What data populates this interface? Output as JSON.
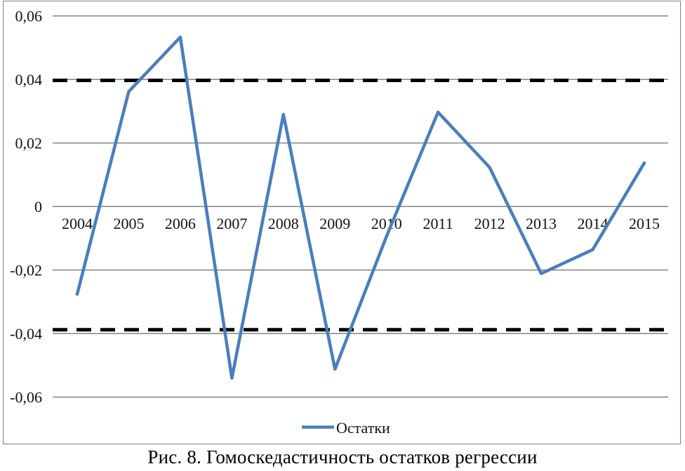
{
  "chart_data": {
    "type": "line",
    "title": "",
    "x": [
      2004,
      2005,
      2006,
      2007,
      2008,
      2009,
      2010,
      2011,
      2012,
      2013,
      2014,
      2015
    ],
    "series": [
      {
        "name": "Остатки",
        "color": "#4a7ebc",
        "values": [
          -0.0276,
          0.0362,
          0.0533,
          -0.054,
          0.029,
          -0.0512,
          -0.0094,
          0.0297,
          0.0123,
          -0.0211,
          -0.0136,
          0.0137
        ]
      }
    ],
    "reference_lines": [
      {
        "value": 0.0397,
        "style": "dashed",
        "color": "#000000"
      },
      {
        "value": -0.0388,
        "style": "dashed",
        "color": "#000000"
      }
    ],
    "ylim": [
      -0.06,
      0.06
    ],
    "ytick_step": 0.02,
    "yticks": [
      0.06,
      0.04,
      0.02,
      0,
      -0.02,
      -0.04,
      -0.06
    ],
    "ytick_labels": [
      "0,06",
      "0,04",
      "0,02",
      "0",
      "-0,02",
      "-0,04",
      "-0,06"
    ],
    "xlabel": "",
    "ylabel": "",
    "grid": "horizontal",
    "legend_position": "bottom-center"
  },
  "caption": "Рис. 8. Гомоскедастичность остатков регрессии",
  "colors": {
    "line": "#4a7ebc",
    "gridline": "#8c8c8c",
    "frame": "#7f7f7f",
    "reference_line": "#000000",
    "text": "#111111"
  }
}
